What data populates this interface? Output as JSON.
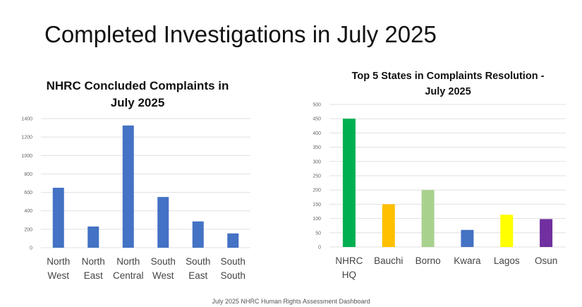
{
  "slide": {
    "title": "Completed Investigations in July 2025",
    "footer": "July 2025 NHRC Human Rights Assessment Dashboard"
  },
  "chart_data": [
    {
      "type": "bar",
      "title": "NHRC Concluded Complaints in July 2025",
      "title_lines": [
        "NHRC Concluded Complaints in",
        "July 2025"
      ],
      "categories": [
        [
          "North",
          "West"
        ],
        [
          "North",
          "East"
        ],
        [
          "North",
          "Central"
        ],
        [
          "South",
          "West"
        ],
        [
          "South",
          "East"
        ],
        [
          "South",
          "South"
        ]
      ],
      "values": [
        650,
        230,
        1325,
        550,
        285,
        155
      ],
      "ylim": [
        0,
        1400
      ],
      "yticks": [
        0,
        200,
        400,
        600,
        800,
        1000,
        1200,
        1400
      ],
      "colors": [
        "#4472c4",
        "#4472c4",
        "#4472c4",
        "#4472c4",
        "#4472c4",
        "#4472c4"
      ],
      "grid": true,
      "xlabel": "",
      "ylabel": ""
    },
    {
      "type": "bar",
      "title": "Top 5 States in Complaints Resolution - July 2025",
      "title_lines": [
        "Top 5 States in Complaints Resolution -",
        "July 2025"
      ],
      "categories": [
        [
          "NHRC",
          "HQ"
        ],
        [
          "Bauchi"
        ],
        [
          "Borno"
        ],
        [
          "Kwara"
        ],
        [
          "Lagos"
        ],
        [
          "Osun"
        ]
      ],
      "values": [
        450,
        150,
        200,
        60,
        113,
        98
      ],
      "ylim": [
        0,
        500
      ],
      "yticks": [
        0,
        50,
        100,
        150,
        200,
        250,
        300,
        350,
        400,
        450,
        500
      ],
      "colors": [
        "#00b050",
        "#ffc000",
        "#a9d18e",
        "#4472c4",
        "#ffff00",
        "#7030a0"
      ],
      "grid": true,
      "xlabel": "",
      "ylabel": ""
    }
  ]
}
